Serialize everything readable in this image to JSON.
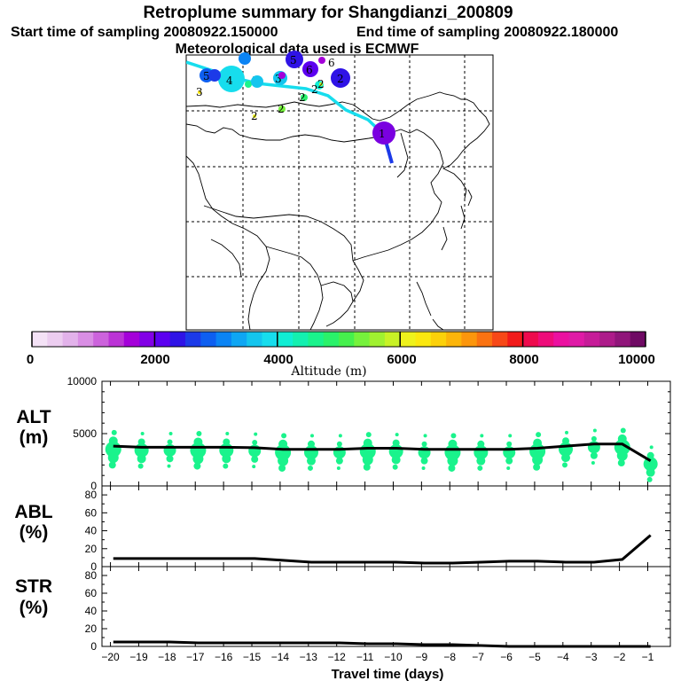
{
  "title": "Retroplume summary for Shangdianzi_200809",
  "start_time": "Start time of sampling 20080922.150000",
  "end_time": "End time of sampling 20080922.180000",
  "met_data": "Meteorological data used is ECMWF",
  "colorbar": {
    "label": "Altitude (m)",
    "ticks": [
      "0",
      "2000",
      "4000",
      "6000",
      "8000",
      "10000"
    ],
    "colors": [
      "#f4e2f6",
      "#eccdf0",
      "#e2b2ea",
      "#d98ee4",
      "#cc63dc",
      "#bb33d6",
      "#a400d9",
      "#8200e6",
      "#5c00f0",
      "#2f13e6",
      "#1c3ae8",
      "#0e5ff0",
      "#0b84f4",
      "#0fa6f3",
      "#14c5ee",
      "#17dded",
      "#10eed4",
      "#13f0b0",
      "#1af38c",
      "#2af26a",
      "#46f04d",
      "#76f23c",
      "#a0f130",
      "#c8f226",
      "#eef21c",
      "#fbe80f",
      "#fcd10a",
      "#fcb50a",
      "#fc960c",
      "#fa7211",
      "#f74817",
      "#f21a1a",
      "#ee0a4d",
      "#ee0c7a",
      "#eb10a0",
      "#df1aa6",
      "#c61c98",
      "#ad1c8a",
      "#90167a",
      "#6f0a64"
    ]
  },
  "map": {
    "markers": [
      {
        "label": "1",
        "color": "#7a00e0"
      },
      {
        "label": "2",
        "color": "#2f13e6"
      },
      {
        "label": "2",
        "color": "#10eed4"
      },
      {
        "label": "2",
        "color": "#2af26a"
      },
      {
        "label": "2",
        "color": "#76f23c"
      },
      {
        "label": "2",
        "color": "#c8f226"
      },
      {
        "label": "2",
        "color": "#eef21c"
      },
      {
        "label": "3",
        "color": "#14c5ee"
      },
      {
        "label": "3",
        "color": "#1af38c"
      },
      {
        "label": "3",
        "color": "#fce80f"
      },
      {
        "label": "4",
        "color": "#17dded"
      },
      {
        "label": "5",
        "color": "#0e5ff0"
      },
      {
        "label": "5",
        "color": "#2f13e6"
      },
      {
        "label": "6",
        "color": "#a400d9"
      },
      {
        "label": "6",
        "color": "#5c00f0"
      }
    ]
  },
  "chart_data": [
    {
      "type": "line",
      "name": "ALT",
      "ylabel": "ALT",
      "yunit": "(m)",
      "ylim": [
        0,
        10000
      ],
      "yticks": [
        "0",
        "5000",
        "10000"
      ],
      "x": [
        -19.9,
        -18.9,
        -17.9,
        -16.9,
        -15.9,
        -14.9,
        -13.9,
        -12.9,
        -11.9,
        -10.9,
        -9.9,
        -8.9,
        -7.9,
        -6.9,
        -5.9,
        -4.9,
        -3.9,
        -2.9,
        -1.9,
        -0.9
      ],
      "y": [
        3800,
        3700,
        3700,
        3700,
        3700,
        3650,
        3500,
        3500,
        3500,
        3600,
        3600,
        3500,
        3500,
        3500,
        3500,
        3600,
        3800,
        4000,
        4000,
        2400
      ],
      "scatter_color": "#1af38c"
    },
    {
      "type": "line",
      "name": "ABL",
      "ylabel": "ABL",
      "yunit": "(%)",
      "ylim": [
        0,
        90
      ],
      "yticks": [
        "0",
        "20",
        "40",
        "60",
        "80"
      ],
      "x": [
        -19.9,
        -18.9,
        -17.9,
        -16.9,
        -15.9,
        -14.9,
        -13.9,
        -12.9,
        -11.9,
        -10.9,
        -9.9,
        -8.9,
        -7.9,
        -6.9,
        -5.9,
        -4.9,
        -3.9,
        -2.9,
        -1.9,
        -0.9
      ],
      "y": [
        9,
        9,
        9,
        9,
        9,
        9,
        7,
        5,
        5,
        5,
        5,
        4,
        4,
        5,
        6,
        6,
        5,
        5,
        8,
        35
      ]
    },
    {
      "type": "line",
      "name": "STR",
      "ylabel": "STR",
      "yunit": "(%)",
      "ylim": [
        0,
        90
      ],
      "yticks": [
        "0",
        "20",
        "40",
        "60",
        "80"
      ],
      "x": [
        -19.9,
        -18.9,
        -17.9,
        -16.9,
        -15.9,
        -14.9,
        -13.9,
        -12.9,
        -11.9,
        -10.9,
        -9.9,
        -8.9,
        -7.9,
        -6.9,
        -5.9,
        -4.9,
        -3.9,
        -2.9,
        -1.9,
        -0.9
      ],
      "y": [
        5,
        5,
        5,
        4,
        4,
        4,
        4,
        4,
        4,
        3,
        3,
        2,
        2,
        1,
        0,
        0,
        0,
        0,
        0,
        0
      ]
    }
  ],
  "xaxis": {
    "label": "Travel time (days)",
    "ticks": [
      "−20",
      "−19",
      "−18",
      "−17",
      "−16",
      "−15",
      "−14",
      "−13",
      "−12",
      "−11",
      "−10",
      "−9",
      "−8",
      "−7",
      "−6",
      "−5",
      "−4",
      "−3",
      "−2",
      "−1"
    ]
  }
}
